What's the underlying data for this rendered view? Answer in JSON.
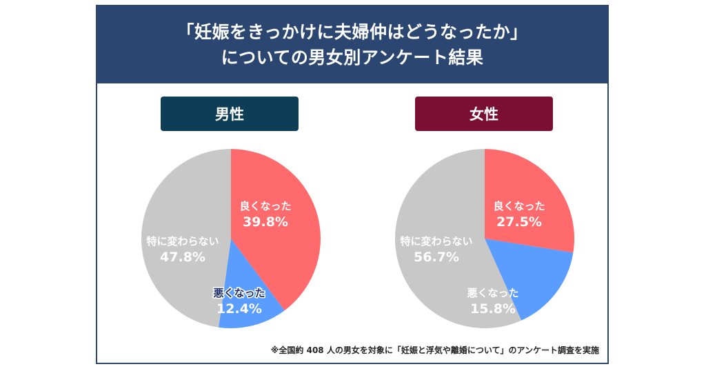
{
  "title": {
    "line1": "「妊娠をきっかけに夫婦仲はどうなったか」",
    "line2": "についての男女別アンケート結果"
  },
  "footnote": "※全国約 408 人の男女を対象に「妊娠と浮気や離婚について」のアンケート調査を実施",
  "colors": {
    "header": "#2b4670",
    "male_badge": "#0e3e56",
    "female_badge": "#7a0f33",
    "good": "#ff6b6d",
    "bad": "#5b9cff",
    "same": "#c8c8c8"
  },
  "chart_data": [
    {
      "type": "pie",
      "title": "男性",
      "categories": [
        "良くなった",
        "悪くなった",
        "特に変わらない"
      ],
      "values": [
        39.8,
        12.4,
        47.8
      ],
      "value_labels": [
        "39.8%",
        "12.4%",
        "47.8%"
      ]
    },
    {
      "type": "pie",
      "title": "女性",
      "categories": [
        "良くなった",
        "悪くなった",
        "特に変わらない"
      ],
      "values": [
        27.5,
        15.8,
        56.7
      ],
      "value_labels": [
        "27.5%",
        "15.8%",
        "56.7%"
      ]
    }
  ]
}
